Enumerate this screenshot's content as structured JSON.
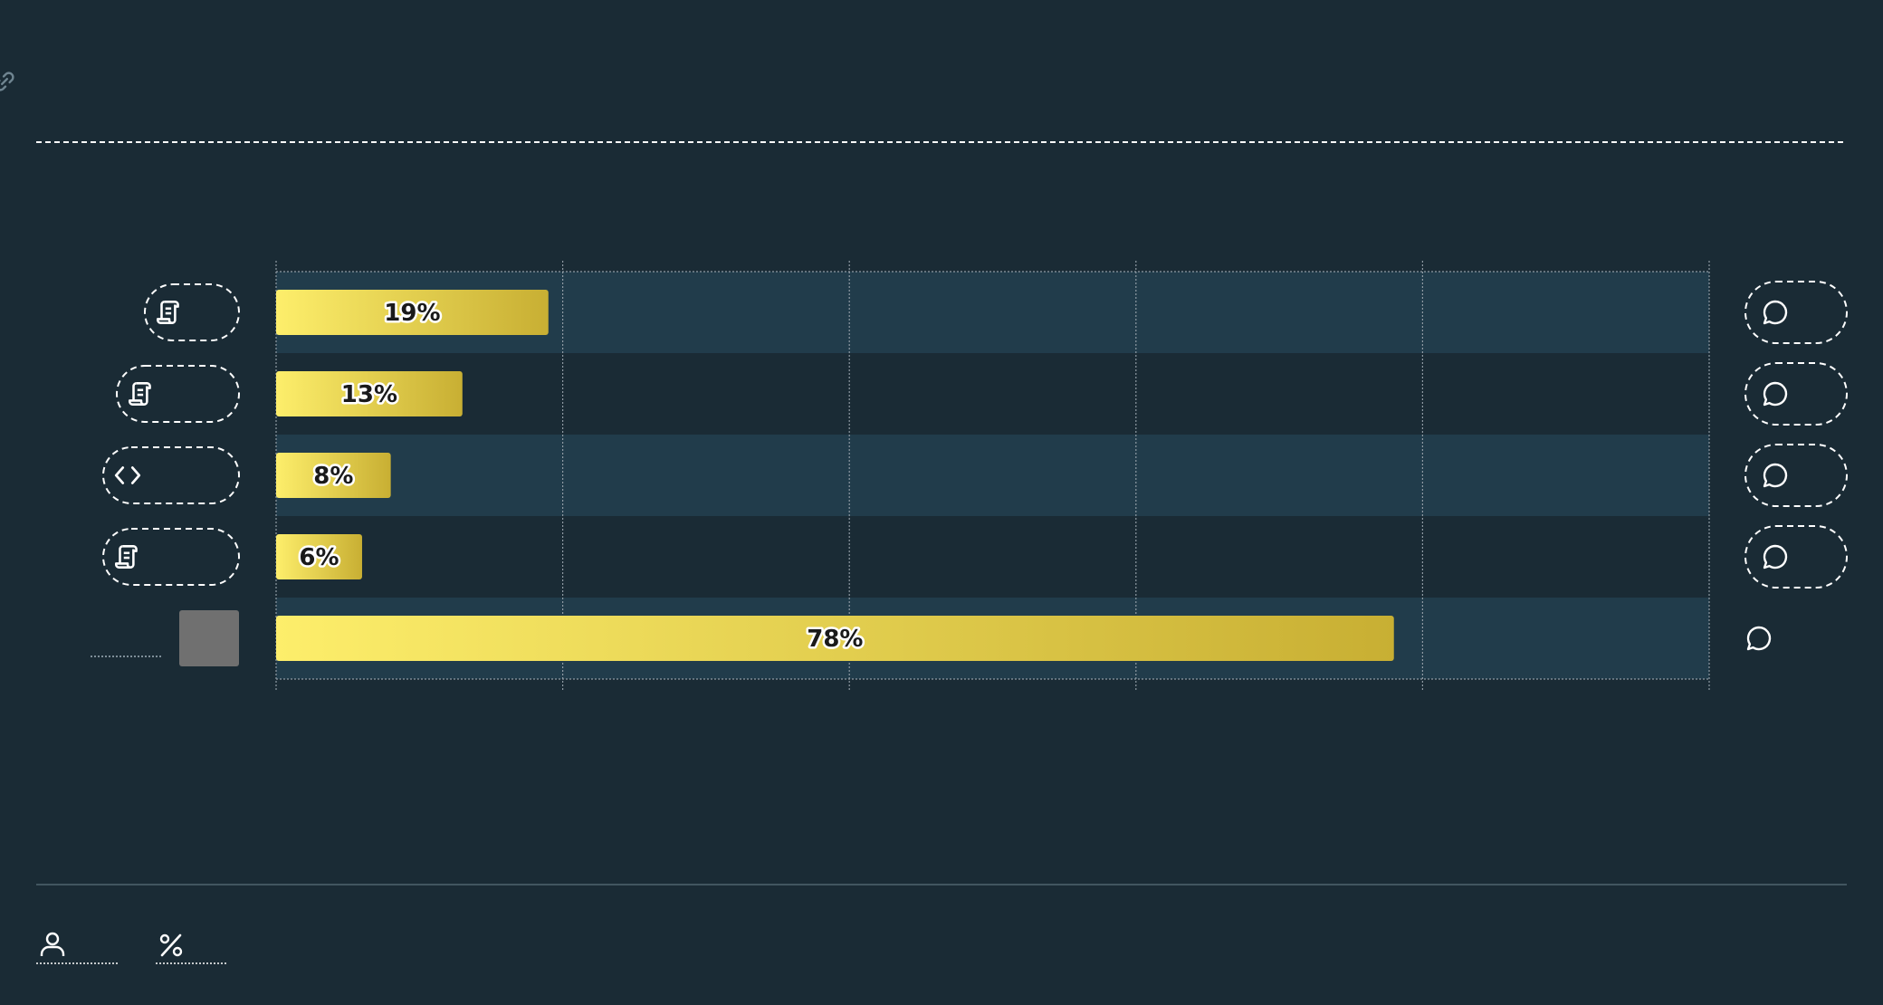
{
  "chart_data": {
    "type": "bar",
    "orientation": "horizontal",
    "title": "",
    "xlabel": "",
    "ylabel": "",
    "xlim": [
      0,
      100
    ],
    "grid": true,
    "categories": [
      {
        "icon": "scroll-icon",
        "placeholder": false
      },
      {
        "icon": "scroll-icon",
        "placeholder": false
      },
      {
        "icon": "code-icon",
        "placeholder": false
      },
      {
        "icon": "scroll-icon",
        "placeholder": false
      },
      {
        "icon": "",
        "placeholder": true
      }
    ],
    "values": [
      19,
      13,
      8,
      6,
      78
    ],
    "labels": [
      "19%",
      "13%",
      "8%",
      "6%",
      "78%"
    ],
    "right_icon": "speech-bubble-icon"
  },
  "colors": {
    "background": "#1a2b35",
    "band": "#213c4b",
    "bar_start": "#fdee6b",
    "bar_end": "#c8af33",
    "grid": "#8f9aa3",
    "accent": "#ffffff",
    "placeholder_square": "#707070"
  },
  "footer": {
    "items": [
      {
        "icon": "user-icon"
      },
      {
        "icon": "percent-icon"
      }
    ]
  },
  "header": {
    "icon": "link-icon"
  }
}
